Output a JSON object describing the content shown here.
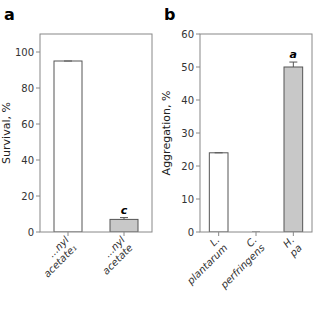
{
  "chart_data": [
    {
      "type": "bar",
      "title": "a",
      "categories": [
        "...nyl acetate₁",
        "...nyl acetate"
      ],
      "values": [
        95.0,
        7.0
      ],
      "errors": [
        0,
        1.0
      ],
      "colors": [
        "white",
        "#c8c8c8"
      ],
      "annotations": [
        null,
        "c"
      ],
      "y_label": "Survival, %",
      "ylim": [
        0,
        110
      ],
      "yticks": [
        0,
        20,
        40,
        60,
        80,
        100
      ],
      "grid": false
    },
    {
      "type": "bar",
      "title": "b",
      "categories": [
        "L. plantarum",
        "C. perfringens",
        "H. pa"
      ],
      "values": [
        24.0,
        0.0,
        50.0
      ],
      "errors": [
        0.0,
        0.0,
        1.5
      ],
      "colors": [
        "white",
        "white",
        "#c8c8c8"
      ],
      "annotations": [
        null,
        null,
        "a"
      ],
      "y_label": "Aggregation, %",
      "ylim": [
        0,
        60
      ],
      "yticks": [
        0,
        10,
        20,
        30,
        40,
        50,
        60
      ],
      "grid": false
    }
  ]
}
